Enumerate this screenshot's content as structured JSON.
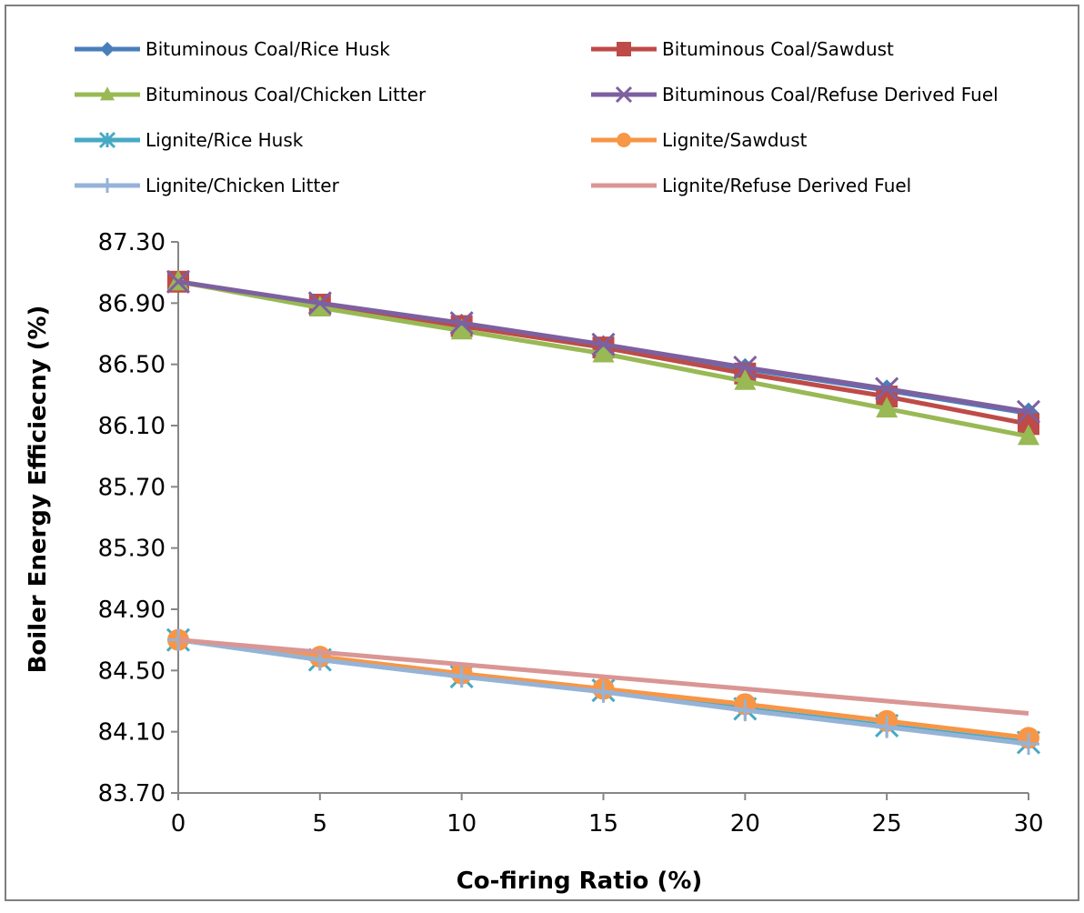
{
  "chart_data": {
    "type": "line",
    "title": "",
    "xlabel": "Co-firing Ratio (%)",
    "ylabel": "Boiler Energy Efficiecny (%)",
    "x": [
      0,
      5,
      10,
      15,
      20,
      25,
      30
    ],
    "x_tick_labels": [
      "0",
      "5",
      "10",
      "15",
      "20",
      "25",
      "30"
    ],
    "ylim": [
      83.7,
      87.3
    ],
    "y_ticks": [
      83.7,
      84.1,
      84.5,
      84.9,
      85.3,
      85.7,
      86.1,
      86.5,
      86.9,
      87.3
    ],
    "y_tick_labels": [
      "83.70",
      "84.10",
      "84.50",
      "84.90",
      "85.30",
      "85.70",
      "86.10",
      "86.50",
      "86.90",
      "87.30"
    ],
    "grid": false,
    "legend_position": "top",
    "series": [
      {
        "name": "Bituminous Coal/Rice Husk",
        "color": "#4a7ebb",
        "marker": "diamond",
        "values": [
          87.04,
          86.89,
          86.76,
          86.62,
          86.47,
          86.33,
          86.18
        ]
      },
      {
        "name": "Bituminous Coal/Sawdust",
        "color": "#be4b48",
        "marker": "square",
        "values": [
          87.04,
          86.89,
          86.75,
          86.61,
          86.44,
          86.29,
          86.11
        ]
      },
      {
        "name": "Bituminous Coal/Chicken Litter",
        "color": "#98b954",
        "marker": "triangle",
        "values": [
          87.04,
          86.87,
          86.72,
          86.57,
          86.39,
          86.21,
          86.03
        ]
      },
      {
        "name": "Bituminous Coal/Refuse Derived Fuel",
        "color": "#7d60a0",
        "marker": "x",
        "values": [
          87.04,
          86.9,
          86.77,
          86.63,
          86.48,
          86.34,
          86.19
        ]
      },
      {
        "name": "Lignite/Rice Husk",
        "color": "#46aac5",
        "marker": "star",
        "values": [
          84.7,
          84.57,
          84.46,
          84.37,
          84.25,
          84.14,
          84.03
        ]
      },
      {
        "name": "Lignite/Sawdust",
        "color": "#f79646",
        "marker": "circle",
        "values": [
          84.7,
          84.59,
          84.48,
          84.38,
          84.28,
          84.17,
          84.06
        ]
      },
      {
        "name": "Lignite/Chicken Litter",
        "color": "#95b3d7",
        "marker": "plus",
        "values": [
          84.7,
          84.57,
          84.46,
          84.36,
          84.24,
          84.13,
          84.02
        ]
      },
      {
        "name": "Lignite/Refuse Derived Fuel",
        "color": "#d99694",
        "marker": "none",
        "values": [
          84.7,
          84.62,
          84.54,
          84.46,
          84.38,
          84.3,
          84.22
        ]
      }
    ]
  }
}
